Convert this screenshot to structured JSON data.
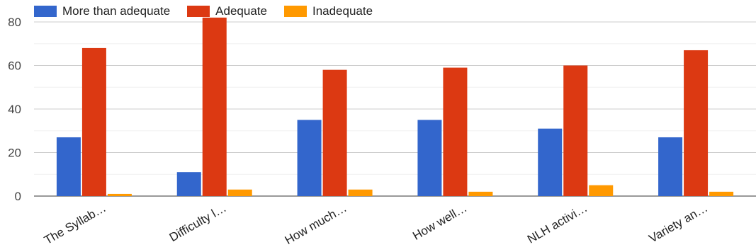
{
  "chart_data": {
    "type": "bar",
    "categories": [
      "The Syllab…",
      "Difficulty l…",
      "How much…",
      "How well…",
      "NLH activi…",
      "Variety an…"
    ],
    "series": [
      {
        "name": "More than adequate",
        "color": "#3366cc",
        "values": [
          27,
          11,
          35,
          35,
          31,
          27
        ]
      },
      {
        "name": "Adequate",
        "color": "#dc3912",
        "values": [
          68,
          82,
          58,
          59,
          60,
          67
        ]
      },
      {
        "name": "Inadequate",
        "color": "#ff9900",
        "values": [
          1,
          3,
          3,
          2,
          5,
          2
        ]
      }
    ],
    "ylim": [
      0,
      80
    ],
    "yticks": [
      0,
      20,
      40,
      60,
      80
    ],
    "grid": true,
    "legend_position": "top-left",
    "title": "",
    "xlabel": "",
    "ylabel": ""
  }
}
